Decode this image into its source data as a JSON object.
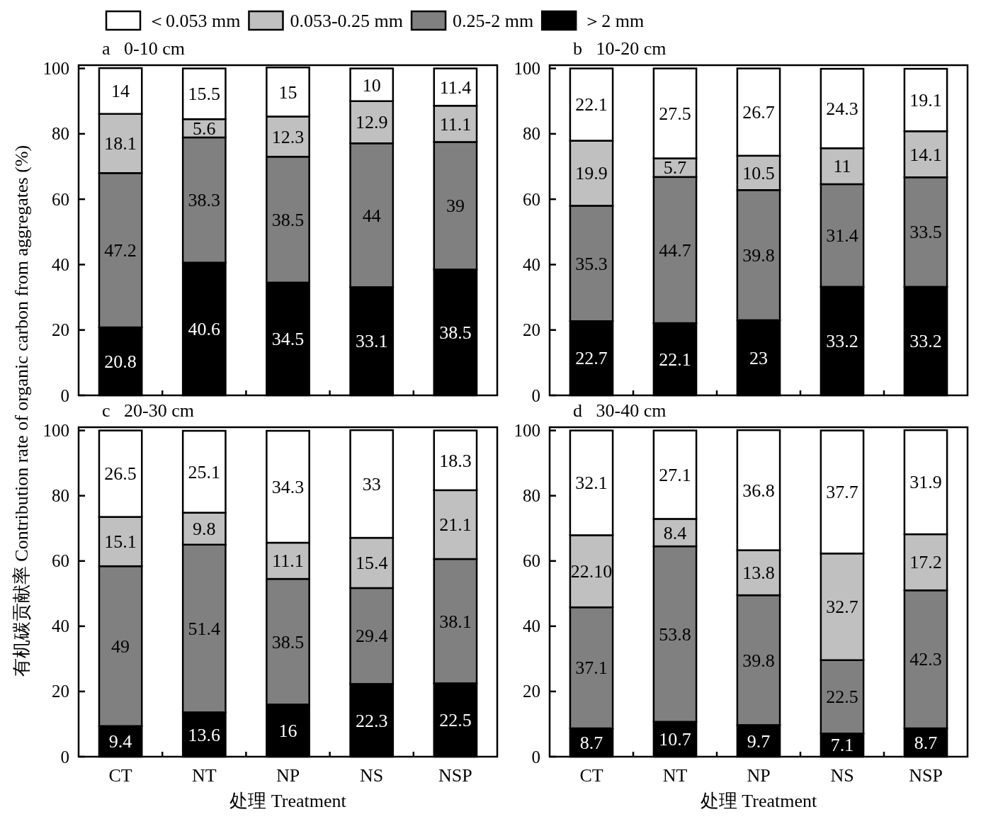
{
  "chart_data": [
    {
      "type": "bar",
      "stacked": true,
      "title": "a   0-10 cm",
      "ylabel": "有机碳贡献率 Contribution rate of organic carbon from aggregates (%)",
      "categories": [
        "CT",
        "NT",
        "NP",
        "NS",
        "NSP"
      ],
      "ylim": [
        0,
        101
      ],
      "yticks": [
        0,
        20,
        40,
        60,
        80,
        100
      ],
      "tick_labels": "y",
      "data_labels": true,
      "legend": "top",
      "series": [
        {
          "name": "＞2 mm",
          "color": "#000000",
          "values": [
            20.8,
            40.6,
            34.5,
            33.1,
            38.5
          ]
        },
        {
          "name": "0.25-2 mm",
          "color": "#808080",
          "values": [
            47.2,
            38.3,
            38.5,
            44,
            39
          ]
        },
        {
          "name": "0.053-0.25 mm",
          "color": "#c0c0c0",
          "values": [
            18.1,
            5.6,
            12.3,
            12.9,
            11.1
          ]
        },
        {
          "name": "＜0.053 mm",
          "color": "#ffffff",
          "values": [
            14,
            15.5,
            15,
            10,
            11.4
          ]
        }
      ]
    },
    {
      "type": "bar",
      "stacked": true,
      "title": "b   10-20 cm",
      "categories": [
        "CT",
        "NT",
        "NP",
        "NS",
        "NSP"
      ],
      "ylim": [
        0,
        101
      ],
      "yticks": [
        0,
        20,
        40,
        60,
        80,
        100
      ],
      "tick_labels": "y",
      "data_labels": true,
      "series": [
        {
          "name": "＞2 mm",
          "color": "#000000",
          "values": [
            22.7,
            22.1,
            23,
            33.2,
            33.2
          ]
        },
        {
          "name": "0.25-2 mm",
          "color": "#808080",
          "values": [
            35.3,
            44.7,
            39.8,
            31.4,
            33.5
          ]
        },
        {
          "name": "0.053-0.25 mm",
          "color": "#c0c0c0",
          "values": [
            19.9,
            5.7,
            10.5,
            11,
            14.1
          ]
        },
        {
          "name": "＜0.053 mm",
          "color": "#ffffff",
          "values": [
            22.1,
            27.5,
            26.7,
            24.3,
            19.1
          ]
        }
      ]
    },
    {
      "type": "bar",
      "stacked": true,
      "title": "c   20-30 cm",
      "xlabel": "处理 Treatment",
      "categories": [
        "CT",
        "NT",
        "NP",
        "NS",
        "NSP"
      ],
      "ylim": [
        0,
        101
      ],
      "yticks": [
        0,
        20,
        40,
        60,
        80,
        100
      ],
      "data_labels": true,
      "series": [
        {
          "name": "＞2 mm",
          "color": "#000000",
          "values": [
            9.4,
            13.6,
            16,
            22.3,
            22.5
          ]
        },
        {
          "name": "0.25-2 mm",
          "color": "#808080",
          "values": [
            49,
            51.4,
            38.5,
            29.4,
            38.1
          ]
        },
        {
          "name": "0.053-0.25 mm",
          "color": "#c0c0c0",
          "values": [
            15.1,
            9.8,
            11.1,
            15.4,
            21.1
          ]
        },
        {
          "name": "＜0.053 mm",
          "color": "#ffffff",
          "values": [
            26.5,
            25.1,
            34.3,
            33,
            18.3
          ]
        }
      ]
    },
    {
      "type": "bar",
      "stacked": true,
      "title": "d   30-40 cm",
      "xlabel": "处理 Treatment",
      "categories": [
        "CT",
        "NT",
        "NP",
        "NS",
        "NSP"
      ],
      "ylim": [
        0,
        101
      ],
      "yticks": [
        0,
        20,
        40,
        60,
        80,
        100
      ],
      "series": [
        {
          "name": "＞2 mm",
          "color": "#000000",
          "values": [
            8.7,
            10.7,
            9.7,
            7.1,
            8.7
          ],
          "value_labels": [
            "8.7",
            "10.7",
            "9.7",
            "7.1",
            "8.7"
          ]
        },
        {
          "name": "0.25-2 mm",
          "color": "#808080",
          "values": [
            37.1,
            53.8,
            39.8,
            22.5,
            42.3
          ],
          "value_labels": [
            "37.1",
            "53.8",
            "39.8",
            "22.5",
            "42.3"
          ]
        },
        {
          "name": "0.053-0.25 mm",
          "color": "#c0c0c0",
          "values": [
            22.1,
            8.4,
            13.8,
            32.7,
            17.2
          ],
          "value_labels": [
            "22.10",
            "8.4",
            "13.8",
            "32.7",
            "17.2"
          ]
        },
        {
          "name": "＜0.053 mm",
          "color": "#ffffff",
          "values": [
            32.1,
            27.1,
            36.8,
            37.7,
            31.9
          ],
          "value_labels": [
            "32.1",
            "27.1",
            "36.8",
            "37.7",
            "31.9"
          ]
        }
      ]
    }
  ]
}
